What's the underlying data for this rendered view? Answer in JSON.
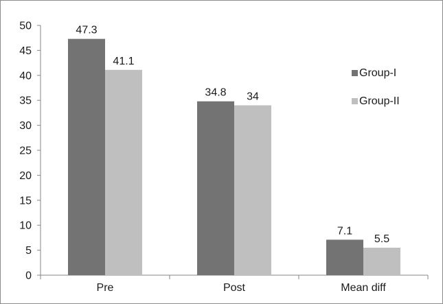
{
  "chart_data": {
    "type": "bar",
    "title": "",
    "xlabel": "",
    "ylabel": "",
    "categories": [
      "Pre",
      "Post",
      "Mean diff"
    ],
    "series": [
      {
        "name": "Group-I",
        "values": [
          47.3,
          34.8,
          7.1
        ],
        "color": "#737373"
      },
      {
        "name": "Group-II",
        "values": [
          41.1,
          34,
          5.5
        ],
        "color": "#bfbfbf"
      }
    ],
    "data_labels": [
      [
        "47.3",
        "34.8",
        "7.1"
      ],
      [
        "41.1",
        "34",
        "5.5"
      ]
    ],
    "ylim": [
      0,
      50
    ],
    "yticks": [
      0,
      5,
      10,
      15,
      20,
      25,
      30,
      35,
      40,
      45,
      50
    ],
    "grid": false,
    "legend_position": "right"
  }
}
